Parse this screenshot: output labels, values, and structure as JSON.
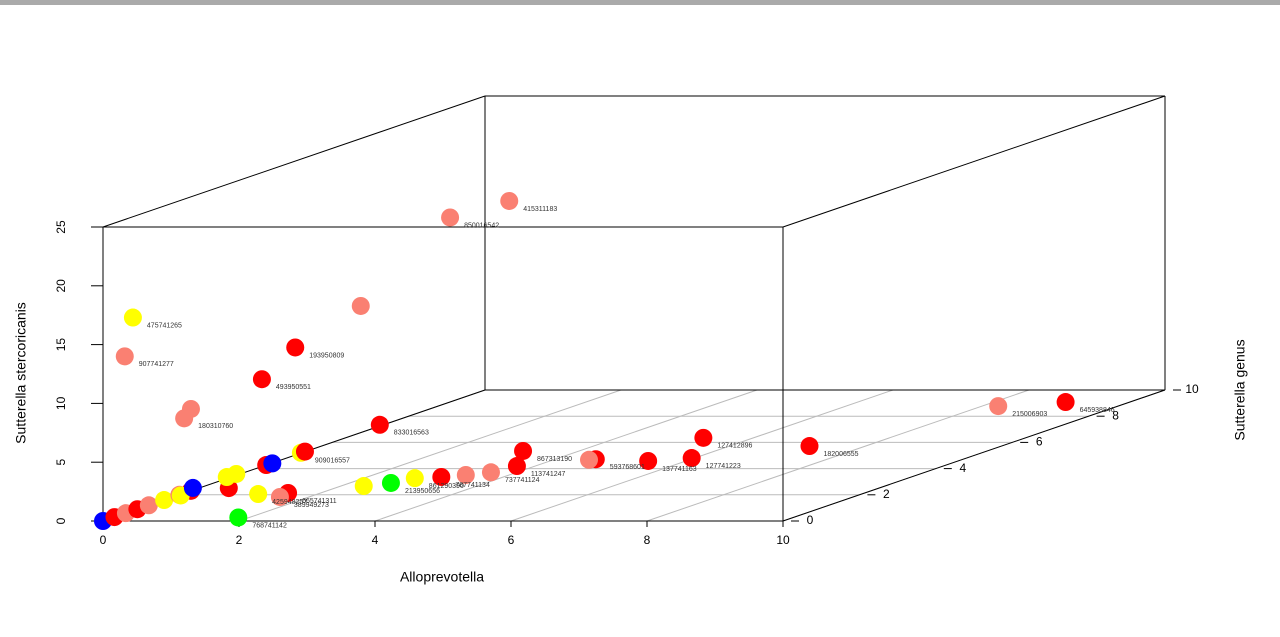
{
  "chart_data": {
    "type": "scatter3d",
    "xlabel": "Alloprevotella",
    "ylabel": "Sutterella genus",
    "zlabel": "Sutterella stercoricanis",
    "xlim": [
      0,
      10
    ],
    "xticks": [
      0,
      2,
      4,
      6,
      8,
      10
    ],
    "ylim": [
      0,
      10
    ],
    "yticks": [
      0,
      2,
      4,
      6,
      8,
      10
    ],
    "zlim": [
      0,
      25
    ],
    "zticks": [
      0,
      5,
      10,
      15,
      20,
      25
    ],
    "grid": true,
    "points": {
      "x": [
        1.48,
        0.61,
        0.42,
        0.58,
        0.09,
        0.44,
        0.32,
        0.17,
        0.07,
        0.7,
        9.1,
        8.39,
        7.3,
        6.02,
        6.41,
        5.77,
        5.0,
        4.9,
        3.93,
        3.84,
        3.29,
        3.65,
        4.02,
        2.9,
        2.83,
        2.43,
        2.16,
        2.04,
        1.72,
        1.85,
        2.4,
        2.49,
        2.91,
        2.97,
        1.96,
        1.82,
        0,
        1.99,
        0,
        0,
        0,
        0,
        0,
        0,
        0,
        0.3,
        0.03
      ],
      "y": [
        8,
        8,
        6,
        4,
        4,
        0,
        0,
        2,
        2,
        6,
        9,
        8.5,
        5.5,
        5,
        4,
        4,
        4,
        4,
        4,
        4,
        3,
        3,
        3,
        3,
        2.5,
        2.5,
        1,
        1,
        1,
        0,
        0,
        0,
        0,
        0,
        0,
        0,
        0,
        0,
        0.3,
        0.6,
        0.9,
        1.2,
        1.6,
        2.0,
        2.3,
        1.5,
        2.3
      ],
      "z": [
        18.3,
        16.9,
        11.6,
        10.3,
        7.6,
        17.3,
        14.0,
        7.3,
        6.5,
        1.5,
        0.09,
        0.3,
        0.25,
        1.5,
        0.9,
        0.65,
        0.8,
        0.75,
        1.5,
        0.22,
        0.4,
        0.57,
        0.8,
        0.3,
        0.45,
        0.19,
        1.27,
        0.93,
        1.18,
        2.8,
        4.76,
        4.9,
        5.8,
        5.9,
        4.0,
        3.74,
        0,
        0.3,
        0,
        0,
        0,
        0,
        0,
        0,
        0,
        0.5,
        0.25
      ],
      "colors": [
        "#fa8072",
        "#fa8072",
        "#fa8072",
        "#ff0000",
        "#ff0000",
        "#ffff00",
        "#fa8072",
        "#fa8072",
        "#fa8072",
        "#ff0000",
        "#ff0000",
        "#fa8072",
        "#ff0000",
        "#ff0000",
        "#ff0000",
        "#ff0000",
        "#ff0000",
        "#fa8072",
        "#ff0000",
        "#ff0000",
        "#ff0000",
        "#fa8072",
        "#fa8072",
        "#ffff00",
        "#00ff00",
        "#ffff00",
        "#ff0000",
        "#fa8072",
        "#ffff00",
        "#ff0000",
        "#ff0000",
        "#0000ff",
        "#ffff00",
        "#ff0000",
        "#ffff00",
        "#ffff00",
        "#0000ff",
        "#00ff00",
        "#ff0000",
        "#fa8072",
        "#ff0000",
        "#fa8072",
        "#ffff00",
        "#fa8072",
        "#ff0000",
        "#ffff00",
        "#0000ff"
      ],
      "labels": [
        "415311183",
        "850016542",
        null,
        "193950809",
        "493950551",
        "475741265",
        "907741277",
        null,
        "180310760",
        "833016563",
        "645938846",
        "215006903",
        "182006555",
        "127412896",
        "127741223",
        "137741163",
        "593768601",
        null,
        "867313190",
        "113741247",
        "787741134",
        null,
        "737741124",
        "861290390",
        "213950656",
        null,
        "665741311",
        "389949273",
        "425948257",
        null,
        null,
        null,
        "909016557",
        null,
        null,
        null,
        null,
        "768741142",
        null,
        null,
        null,
        null,
        null,
        null,
        null,
        null,
        null
      ]
    }
  }
}
